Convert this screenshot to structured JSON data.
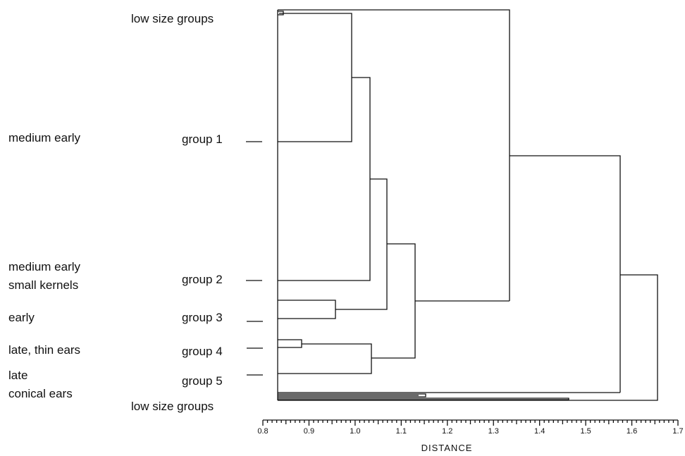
{
  "labels": {
    "low_size_top": "low size groups",
    "low_size_bottom": "low size groups",
    "group_1": "group 1",
    "group_2": "group 2",
    "group_3": "group 3",
    "group_4": "group 4",
    "group_5": "group 5",
    "medium_early": "medium early",
    "medium_early_small_1": "medium early",
    "medium_early_small_2": "small kernels",
    "early": "early",
    "late_thin_ears": "late, thin ears",
    "late_conical_1": "late",
    "late_conical_2": "conical ears"
  },
  "axis": {
    "title": "DISTANCE",
    "range": [
      0.8,
      1.7
    ],
    "ticks": [
      "0.8",
      "0.9",
      "1.0",
      "1.1",
      "1.2",
      "1.3",
      "1.4",
      "1.5",
      "1.6",
      "1.7"
    ]
  },
  "merges": [
    {
      "id": "low_tiny",
      "children": [
        "top_leaf_a",
        "top_leaf_b"
      ],
      "distance": 0.84
    },
    {
      "id": "g1",
      "children": [
        "low_tiny",
        "group1_leaf"
      ],
      "distance": 0.99
    },
    {
      "id": "g12",
      "children": [
        "g1",
        "group2_leaf"
      ],
      "distance": 1.03
    },
    {
      "id": "g3",
      "children": [
        "group3_leaf_a",
        "group3_leaf_b"
      ],
      "distance": 0.96
    },
    {
      "id": "g123",
      "children": [
        "g12",
        "g3"
      ],
      "distance": 1.07
    },
    {
      "id": "g4",
      "children": [
        "group4_leaf_a",
        "group4_leaf_b"
      ],
      "distance": 0.88
    },
    {
      "id": "g45",
      "children": [
        "g4",
        "group5_leaf"
      ],
      "distance": 1.04
    },
    {
      "id": "g12345",
      "children": [
        "g123",
        "g45"
      ],
      "distance": 1.13
    },
    {
      "id": "top_cluster",
      "children": [
        "top_leaf_c",
        "g12345"
      ],
      "distance": 1.33
    },
    {
      "id": "low_a",
      "children": [
        "bottom_leaf_a",
        "bottom_leaf_b"
      ],
      "distance": 1.15
    },
    {
      "id": "low_b",
      "children": [
        "low_a",
        "bottom_leaf_c"
      ],
      "distance": 1.14
    },
    {
      "id": "main",
      "children": [
        "top_cluster",
        "low_b"
      ],
      "distance": 1.57
    },
    {
      "id": "root",
      "children": [
        "main",
        "bottom_leaf_d"
      ],
      "distance": 1.46
    },
    {
      "id": "root_final",
      "children": [
        "root",
        "main"
      ],
      "distance": 1.65
    }
  ]
}
